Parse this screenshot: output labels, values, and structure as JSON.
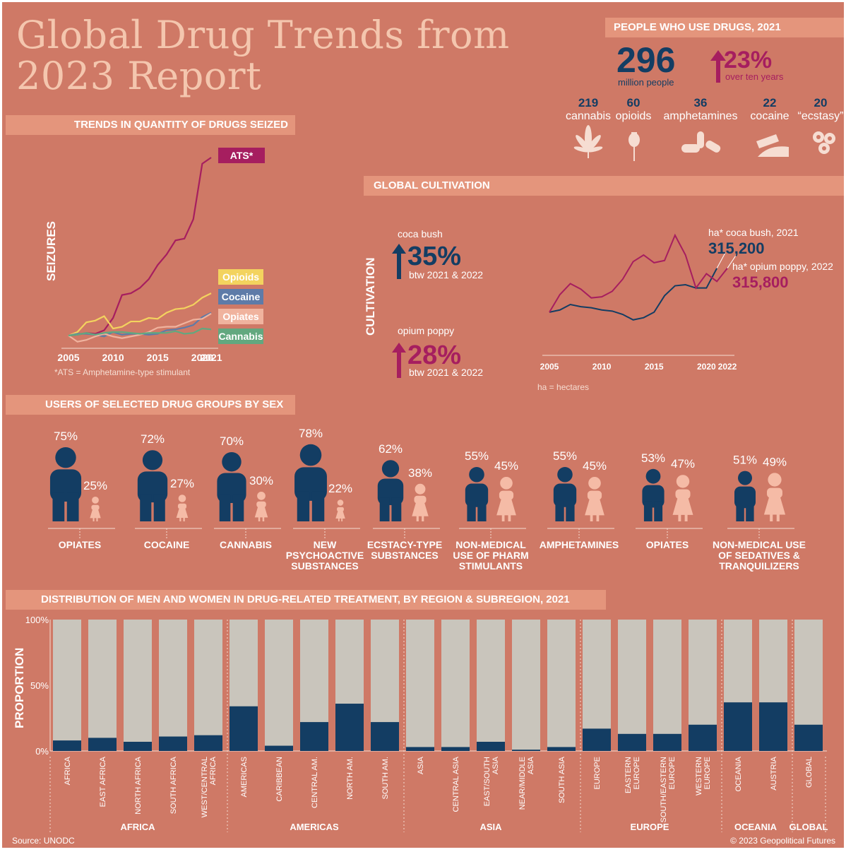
{
  "title_line1": "Global Drug Trends from",
  "title_line2": "2023 Report",
  "colors": {
    "background": "#cf7966",
    "band": "#e4957c",
    "navy": "#133d63",
    "magenta": "#a61e5f",
    "bar_gray": "#c9c5bc",
    "title": "#f4c6ae",
    "female": "#f5bba6"
  },
  "people": {
    "header": "PEOPLE WHO USE DRUGS, 2021",
    "total": "296",
    "total_unit": "million people",
    "growth": "23%",
    "growth_sub": "over ten years",
    "groups": [
      {
        "count": "219",
        "label": "cannabis",
        "icon": "cannabis-leaf-icon"
      },
      {
        "count": "60",
        "label": "opioids",
        "icon": "poppy-icon"
      },
      {
        "count": "36",
        "label": "amphetamines",
        "icon": "pills-icon"
      },
      {
        "count": "22",
        "label": "cocaine",
        "icon": "cocaine-icon"
      },
      {
        "count": "20",
        "label": "“ecstasy”",
        "icon": "ecstasy-tablets-icon"
      }
    ]
  },
  "seizures": {
    "header": "TRENDS IN QUANTITY OF DRUGS SEIZED",
    "ylabel": "SEIZURES",
    "footnote": "*ATS = Amphetamine-type stimulant",
    "legend": [
      "ATS*",
      "Opioids",
      "Cocaine",
      "Opiates",
      "Cannabis"
    ]
  },
  "cultivation": {
    "header": "GLOBAL CULTIVATION",
    "ylabel": "CULTIVATION",
    "coca_label": "coca bush",
    "coca_pct": "35%",
    "coca_sub": "btw 2021 & 2022",
    "poppy_label": "opium poppy",
    "poppy_pct": "28%",
    "poppy_sub": "btw 2021 & 2022",
    "coca_ha_label": "ha* coca bush, 2021",
    "coca_ha_value": "315,200",
    "poppy_ha_label": "ha* opium poppy, 2022",
    "poppy_ha_value": "315,800",
    "footnote": "ha = hectares"
  },
  "sex": {
    "header": "USERS OF SELECTED DRUG GROUPS BY SEX"
  },
  "treatment": {
    "header": "DISTRIBUTION OF MEN AND WOMEN IN DRUG-RELATED TREATMENT, BY REGION & SUBREGION, 2021",
    "ylabel": "PROPORTION"
  },
  "footer": {
    "source": "Source: UNODC",
    "copyright": "© 2023 Geopolitical Futures"
  },
  "chart_data": [
    {
      "type": "line",
      "title": "TRENDS IN QUANTITY OF DRUGS SEIZED",
      "ylabel": "SEIZURES",
      "x_ticks": [
        2005,
        2010,
        2015,
        2020,
        2021
      ],
      "x": [
        2005,
        2006,
        2007,
        2008,
        2009,
        2010,
        2011,
        2012,
        2013,
        2014,
        2015,
        2016,
        2017,
        2018,
        2019,
        2020,
        2021
      ],
      "series": [
        {
          "name": "ATS*",
          "color": "#a61e5f",
          "values": [
            10,
            11,
            13,
            12,
            16,
            30,
            56,
            58,
            64,
            74,
            90,
            102,
            118,
            120,
            142,
            205,
            212
          ]
        },
        {
          "name": "Opioids",
          "color": "#f3d35e",
          "values": [
            10,
            14,
            25,
            27,
            32,
            18,
            20,
            26,
            26,
            30,
            29,
            36,
            40,
            41,
            45,
            53,
            58
          ]
        },
        {
          "name": "Cocaine",
          "color": "#5e7ba8",
          "values": [
            10,
            12,
            12,
            11,
            9,
            14,
            11,
            12,
            12,
            11,
            12,
            16,
            17,
            19,
            22,
            31,
            36
          ]
        },
        {
          "name": "Opiates",
          "color": "#f0b39e",
          "values": [
            10,
            3,
            5,
            9,
            12,
            9,
            7,
            9,
            11,
            14,
            19,
            20,
            20,
            24,
            28,
            29,
            35
          ]
        },
        {
          "name": "Cannabis",
          "color": "#62a87f",
          "values": [
            10,
            11,
            13,
            11,
            13,
            14,
            14,
            13,
            12,
            13,
            13,
            13,
            15,
            12,
            13,
            18,
            17
          ]
        }
      ]
    },
    {
      "type": "line",
      "title": "GLOBAL CULTIVATION",
      "ylabel": "CULTIVATION",
      "x_ticks": [
        2005,
        2010,
        2015,
        2020,
        2022
      ],
      "x": [
        2005,
        2006,
        2007,
        2008,
        2009,
        2010,
        2011,
        2012,
        2013,
        2014,
        2015,
        2016,
        2017,
        2018,
        2019,
        2020,
        2021,
        2022
      ],
      "series": [
        {
          "name": "coca bush",
          "color": "#133d63",
          "values": [
            20,
            22,
            27,
            25,
            24,
            22,
            21,
            18,
            13,
            15,
            20,
            35,
            44,
            45,
            42,
            42,
            60,
            null
          ]
        },
        {
          "name": "opium poppy",
          "color": "#a61e5f",
          "values": [
            20,
            36,
            46,
            41,
            33,
            34,
            39,
            50,
            66,
            72,
            65,
            67,
            90,
            72,
            42,
            55,
            48,
            60
          ]
        }
      ]
    },
    {
      "type": "bar",
      "title": "USERS OF SELECTED DRUG GROUPS BY SEX",
      "categories": [
        "OPIATES",
        "COCAINE",
        "CANNABIS",
        "NEW PSYCHOACTIVE SUBSTANCES",
        "ECSTACY-TYPE SUBSTANCES",
        "NON-MEDICAL USE OF PHARM STIMULANTS",
        "AMPHETAMINES",
        "OPIATES",
        "NON-MEDICAL USE OF SEDATIVES & TRANQUILIZERS"
      ],
      "series": [
        {
          "name": "men",
          "values": [
            75,
            72,
            70,
            78,
            62,
            55,
            55,
            53,
            51
          ],
          "labels": [
            "75%",
            "72%",
            "70%",
            "78%",
            "62%",
            "55%",
            "55%",
            "53%",
            "51%"
          ]
        },
        {
          "name": "women",
          "values": [
            25,
            27,
            30,
            22,
            38,
            45,
            45,
            47,
            49
          ],
          "labels": [
            "25%",
            "27%",
            "30%",
            "22%",
            "38%",
            "45%",
            "45%",
            "47%",
            "49%"
          ]
        }
      ]
    },
    {
      "type": "bar",
      "title": "DISTRIBUTION OF MEN AND WOMEN IN DRUG-RELATED TREATMENT, BY REGION & SUBREGION, 2021",
      "ylabel": "PROPORTION",
      "y_ticks": [
        "100%",
        "50%",
        "0%"
      ],
      "ylim": [
        0,
        100
      ],
      "groups": [
        {
          "name": "AFRICA",
          "categories": [
            "AFRICA",
            "EAST AFRICA",
            "NORTH AFRICA",
            "SOUTH AFRICA",
            "WEST/CENTRAL AFRICA"
          ],
          "values": [
            8,
            10,
            7,
            11,
            12
          ]
        },
        {
          "name": "AMERICAS",
          "categories": [
            "AMERICAS",
            "CARIBBEAN",
            "CENTRAL AM.",
            "NORTH AM.",
            "SOUTH AM."
          ],
          "values": [
            34,
            4,
            22,
            36,
            22
          ]
        },
        {
          "name": "ASIA",
          "categories": [
            "ASIA",
            "CENTRAL ASIA",
            "EAST/SOUTH ASIA",
            "NEAR/MIDDLE ASIA",
            "SOUTH ASIA"
          ],
          "values": [
            3,
            3,
            7,
            1,
            3
          ]
        },
        {
          "name": "EUROPE",
          "categories": [
            "EUROPE",
            "EASTERN EUROPE",
            "SOUTH/EASTERN EUROPE",
            "WESTERN EUROPE"
          ],
          "values": [
            17,
            13,
            13,
            20
          ]
        },
        {
          "name": "OCEANIA",
          "categories": [
            "OCEANIA",
            "AUSTRIA"
          ],
          "values": [
            37,
            37
          ]
        },
        {
          "name": "GLOBAL",
          "categories": [
            "GLOBAL"
          ],
          "values": [
            20
          ]
        }
      ]
    }
  ]
}
